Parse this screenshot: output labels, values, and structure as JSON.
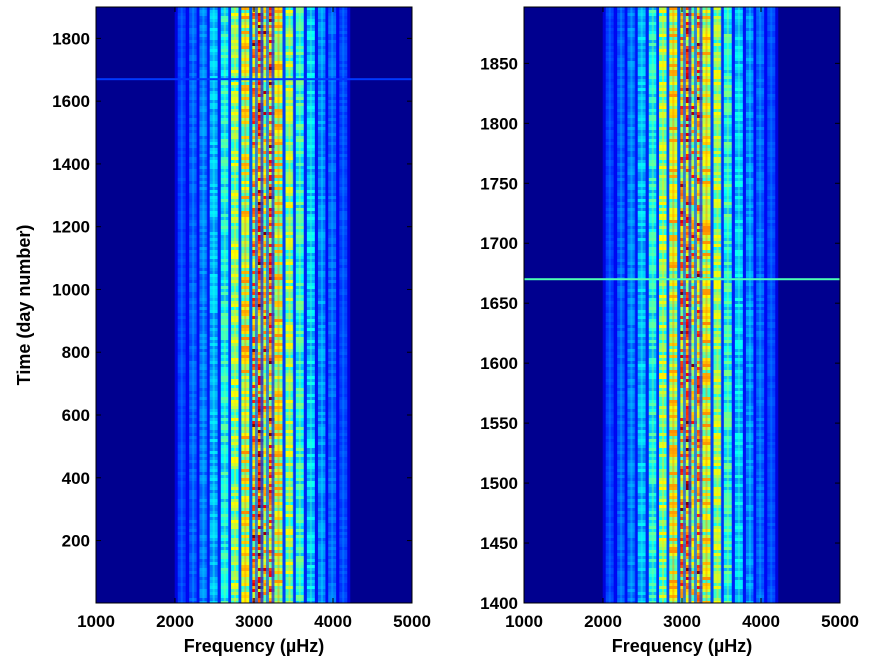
{
  "colors": {
    "background": "#00008f",
    "axis": "#000000"
  },
  "chart_data": [
    {
      "type": "heatmap",
      "colormap": "jet",
      "xlabel": "Frequency  (µHz)",
      "ylabel": "Time  (day number)",
      "xlim": [
        1000,
        5000
      ],
      "ylim": [
        1,
        1900
      ],
      "x_ticks": [
        1000,
        2000,
        3000,
        4000,
        5000
      ],
      "y_ticks": [
        200,
        400,
        600,
        800,
        1000,
        1200,
        1400,
        1600,
        1800
      ],
      "grid": false,
      "ridges": [
        {
          "frequency": 2085,
          "intensity": 0.06
        },
        {
          "frequency": 2230,
          "intensity": 0.1
        },
        {
          "frequency": 2360,
          "intensity": 0.14
        },
        {
          "frequency": 2490,
          "intensity": 0.22
        },
        {
          "frequency": 2630,
          "intensity": 0.33
        },
        {
          "frequency": 2760,
          "intensity": 0.5
        },
        {
          "frequency": 2890,
          "intensity": 0.6
        },
        {
          "frequency": 3030,
          "intensity": 0.72
        },
        {
          "frequency": 3100,
          "intensity": 0.82
        },
        {
          "frequency": 3170,
          "intensity": 0.62
        },
        {
          "frequency": 3240,
          "intensity": 0.76
        },
        {
          "frequency": 3310,
          "intensity": 0.6
        },
        {
          "frequency": 3450,
          "intensity": 0.5
        },
        {
          "frequency": 3580,
          "intensity": 0.36
        },
        {
          "frequency": 3720,
          "intensity": 0.25
        },
        {
          "frequency": 3860,
          "intensity": 0.16
        },
        {
          "frequency": 3990,
          "intensity": 0.11
        },
        {
          "frequency": 4130,
          "intensity": 0.07
        }
      ],
      "horizontal_feature": {
        "time": 1670,
        "intensity": 0.18
      }
    },
    {
      "type": "heatmap",
      "colormap": "jet",
      "xlabel": "Frequency  (µHz)",
      "ylabel": "",
      "xlim": [
        1000,
        5000
      ],
      "ylim": [
        1400,
        1897
      ],
      "x_ticks": [
        1000,
        2000,
        3000,
        4000,
        5000
      ],
      "y_ticks": [
        1400,
        1450,
        1500,
        1550,
        1600,
        1650,
        1700,
        1750,
        1800,
        1850
      ],
      "grid": false,
      "ridges": [
        {
          "frequency": 2085,
          "intensity": 0.06
        },
        {
          "frequency": 2230,
          "intensity": 0.1
        },
        {
          "frequency": 2360,
          "intensity": 0.14
        },
        {
          "frequency": 2490,
          "intensity": 0.22
        },
        {
          "frequency": 2630,
          "intensity": 0.33
        },
        {
          "frequency": 2760,
          "intensity": 0.5
        },
        {
          "frequency": 2890,
          "intensity": 0.6
        },
        {
          "frequency": 3030,
          "intensity": 0.72
        },
        {
          "frequency": 3100,
          "intensity": 0.8
        },
        {
          "frequency": 3170,
          "intensity": 0.62
        },
        {
          "frequency": 3240,
          "intensity": 0.74
        },
        {
          "frequency": 3310,
          "intensity": 0.6
        },
        {
          "frequency": 3450,
          "intensity": 0.5
        },
        {
          "frequency": 3580,
          "intensity": 0.36
        },
        {
          "frequency": 3720,
          "intensity": 0.25
        },
        {
          "frequency": 3860,
          "intensity": 0.16
        },
        {
          "frequency": 3990,
          "intensity": 0.11
        },
        {
          "frequency": 4130,
          "intensity": 0.07
        }
      ],
      "horizontal_feature": {
        "time": 1670,
        "intensity": 0.45
      }
    }
  ]
}
